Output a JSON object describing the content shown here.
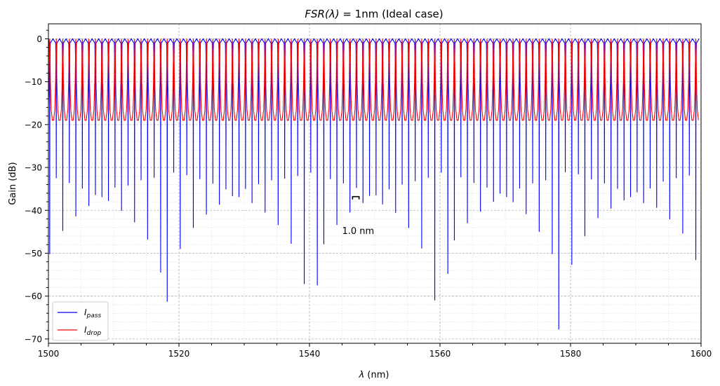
{
  "chart_data": {
    "type": "line",
    "title_math": "FSR(λ)",
    "title_rest": " = 1nm (Ideal case)",
    "xlabel_var": "λ",
    "xlabel_unit": " (nm)",
    "ylabel": "Gain (dB)",
    "xlim": [
      1500,
      1600
    ],
    "ylim": [
      -71,
      3.5
    ],
    "xticks": [
      1500,
      1520,
      1540,
      1560,
      1580,
      1600
    ],
    "yticks": [
      0,
      -10,
      -20,
      -30,
      -40,
      -50,
      -60,
      -70
    ],
    "xtick_labels": [
      "1500",
      "1520",
      "1540",
      "1560",
      "1580",
      "1600"
    ],
    "ytick_labels": [
      "0",
      "−10",
      "−20",
      "−30",
      "−40",
      "−50",
      "−60",
      "−70"
    ],
    "grid": true,
    "legend_position": "lower-left",
    "fsr_nm": 1.0,
    "first_resonance_nm": 1500.2,
    "series": [
      {
        "name": "I",
        "name_sub": "pass",
        "color": "#0000ff",
        "baseline_db": 0,
        "resonance_minima_db": [
          -50.2,
          -32.5,
          -44.8,
          -33.6,
          -41.4,
          -34.9,
          -39.0,
          -36.4,
          -36.9,
          -37.8,
          -34.7,
          -40.1,
          -34.2,
          -42.8,
          -33.0,
          -46.8,
          -32.4,
          -54.5,
          -61.3,
          -31.2,
          -49.0,
          -31.8,
          -44.1,
          -32.7,
          -41.0,
          -33.8,
          -38.7,
          -35.1,
          -36.7,
          -36.9,
          -35.0,
          -38.3,
          -33.9,
          -40.5,
          -33.0,
          -43.4,
          -32.6,
          -47.8,
          -32.0,
          -57.2,
          -31.2,
          -57.5,
          -47.9,
          -32.7,
          -43.4,
          -33.7,
          -40.5,
          -34.8,
          -38.3,
          -36.6,
          -36.5,
          -38.6,
          -35.1,
          -40.6,
          -34.0,
          -44.1,
          -33.2,
          -48.9,
          -32.4,
          -61.0,
          -31.2,
          -54.8,
          -47.0,
          -32.3,
          -43.0,
          -33.6,
          -40.3,
          -34.7,
          -38.0,
          -36.1,
          -36.9,
          -38.1,
          -34.9,
          -40.9,
          -33.7,
          -45.0,
          -33.0,
          -50.2,
          -67.8,
          -31.1,
          -52.7,
          -31.6,
          -46.0,
          -32.8,
          -41.8,
          -33.7,
          -39.6,
          -35.0,
          -37.7,
          -36.9,
          -35.8,
          -38.3,
          -34.9,
          -39.4,
          -33.3,
          -42.1,
          -32.5,
          -45.4,
          -31.9,
          -51.6
        ]
      },
      {
        "name": "I",
        "name_sub": "drop",
        "color": "#ff0000",
        "baseline_db": -19.0,
        "peak_db": 0
      }
    ],
    "annotation": {
      "text": "1.0 nm",
      "x": 1545,
      "y": -45.5,
      "bracket_x": [
        1546.6,
        1547.6
      ],
      "bracket_y": -36.8
    }
  }
}
